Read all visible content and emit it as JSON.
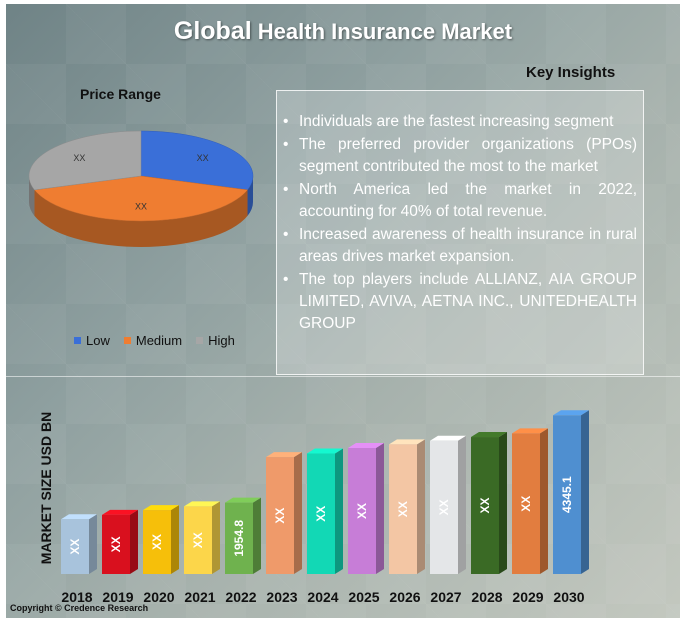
{
  "title": {
    "part1": "Global",
    "part2": "Health Insurance Market"
  },
  "key_insights_title": "Key Insights",
  "insights": [
    "Individuals are the fastest increasing segment",
    "The preferred provider organizations (PPOs) segment contributed the most to the market",
    "North America led the market in 2022, accounting for 40% of total revenue.",
    "Increased awareness of health insurance in rural areas drives market expansion.",
    "The top players include ALLIANZ, AIA GROUP LIMITED, AVIVA, AETNA INC., UNITEDHEALTH GROUP"
  ],
  "copyright": "Copyright © Credence Research",
  "colors": {
    "low": "#3a6fd8",
    "medium": "#ef7d31",
    "high": "#a6a6a6"
  },
  "chart_data": [
    {
      "type": "pie",
      "title": "Price Range",
      "categories": [
        "Low",
        "Medium",
        "High"
      ],
      "values": [
        30,
        40,
        30
      ],
      "data_labels": [
        "XX",
        "XX",
        "XX"
      ],
      "legend_position": "bottom"
    },
    {
      "type": "bar",
      "ylabel": "MARKET SIZE USD BN",
      "xlabel": "",
      "categories": [
        "2018",
        "2019",
        "2020",
        "2021",
        "2022",
        "2023",
        "2024",
        "2025",
        "2026",
        "2027",
        "2028",
        "2029",
        "2030"
      ],
      "values": [
        1500,
        1620,
        1750,
        1850,
        1954.8,
        3200,
        3300,
        3450,
        3550,
        3650,
        3750,
        3850,
        4345.1
      ],
      "data_labels": [
        "XX",
        "XX",
        "XX",
        "XX",
        "1954.8",
        "XX",
        "XX",
        "XX",
        "XX",
        "XX",
        "XX",
        "XX",
        "4345.1"
      ],
      "bar_colors": [
        "#a8c3dc",
        "#d9101e",
        "#f6bf0a",
        "#fcd64a",
        "#6fb24e",
        "#ef9a6a",
        "#12d8b5",
        "#c77dd7",
        "#f3c6a4",
        "#e4e6e8",
        "#3a6a25",
        "#e27d3f",
        "#4f8fd0"
      ],
      "ylim": [
        0,
        4600
      ],
      "grid": false
    }
  ]
}
